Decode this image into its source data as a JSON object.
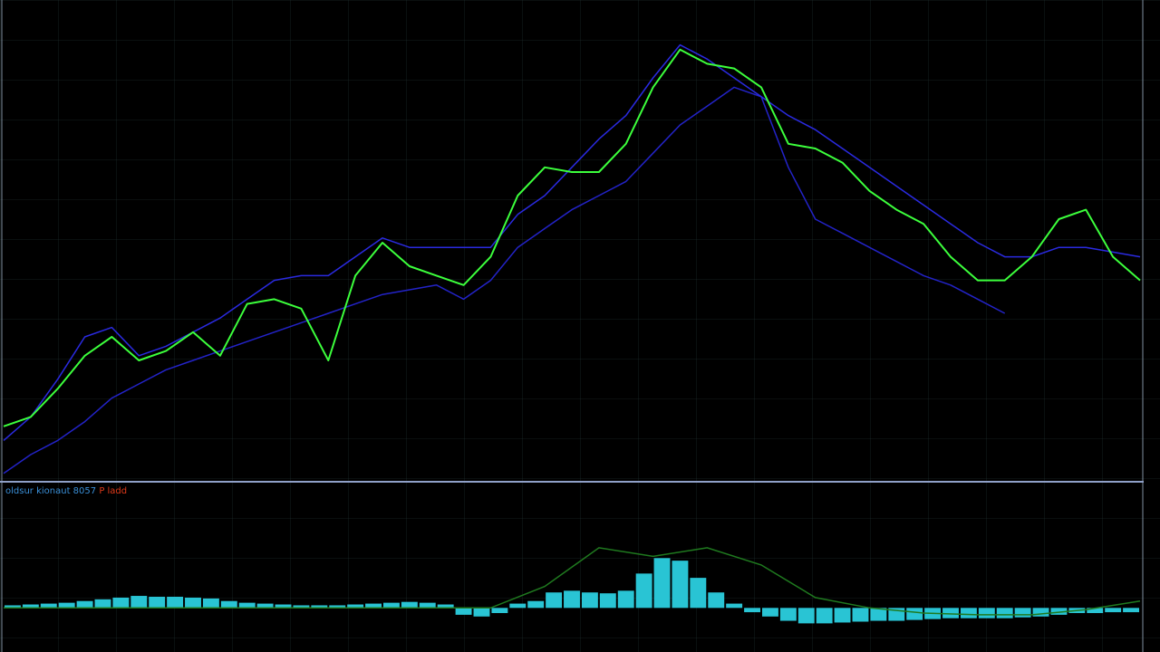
{
  "chart_data": [
    {
      "type": "line",
      "ylim": [
        0,
        100
      ],
      "series": [
        {
          "color": "#3cff3c",
          "values": [
            11,
            13,
            19,
            26,
            30,
            25,
            27,
            31,
            26,
            37,
            38,
            36,
            25,
            43,
            50,
            45,
            43,
            41,
            47,
            60,
            66,
            65,
            65,
            71,
            83,
            91,
            88,
            87,
            83,
            71,
            70,
            67,
            61,
            57,
            54,
            47,
            42,
            42,
            47,
            55,
            57,
            47,
            42
          ]
        },
        {
          "color": "#2a2ae0",
          "values": [
            8,
            13,
            21,
            30,
            32,
            26,
            28,
            31,
            34,
            38,
            42,
            43,
            43,
            47,
            51,
            49,
            49,
            49,
            49,
            56,
            60,
            66,
            72,
            77,
            85,
            92,
            89,
            85,
            81,
            77,
            74,
            70,
            66,
            62,
            58,
            54,
            50,
            47,
            47,
            49,
            49,
            48,
            47
          ]
        },
        {
          "color": "#2323c8",
          "values": [
            1,
            5,
            8,
            12,
            17,
            20,
            23,
            25,
            27,
            29,
            31,
            33,
            35,
            37,
            39,
            40,
            41,
            38,
            42,
            49,
            53,
            57,
            60,
            63,
            69,
            75,
            79,
            83,
            81,
            66,
            55,
            52,
            49,
            46,
            43,
            41,
            38,
            35,
            null,
            null,
            null,
            null,
            null
          ]
        }
      ]
    },
    {
      "type": "bar",
      "title": "oldsur kionaut 8057",
      "title_highlight": "P ladd",
      "title_color": "#3a8fd8",
      "title_highlight_color": "#e03a1a",
      "ylim": [
        -45,
        130
      ],
      "color": "#29c4d4",
      "values": [
        3,
        4,
        5,
        6,
        8,
        10,
        12,
        14,
        13,
        13,
        12,
        11,
        8,
        6,
        5,
        4,
        3,
        3,
        3,
        4,
        5,
        6,
        7,
        6,
        4,
        -8,
        -10,
        -6,
        5,
        8,
        18,
        20,
        18,
        17,
        20,
        40,
        58,
        55,
        35,
        18,
        5,
        -5,
        -10,
        -15,
        -18,
        -18,
        -17,
        -16,
        -15,
        -15,
        -14,
        -13,
        -12,
        -12,
        -12,
        -12,
        -11,
        -10,
        -8,
        -6,
        -6,
        -5,
        -5
      ],
      "signal": {
        "color": "#1f7a1f",
        "values": [
          0,
          0,
          0,
          0,
          0,
          0,
          0,
          0,
          0,
          0,
          25,
          70,
          60,
          70,
          50,
          12,
          0,
          -6,
          -8,
          -8,
          -2,
          8
        ]
      }
    }
  ]
}
